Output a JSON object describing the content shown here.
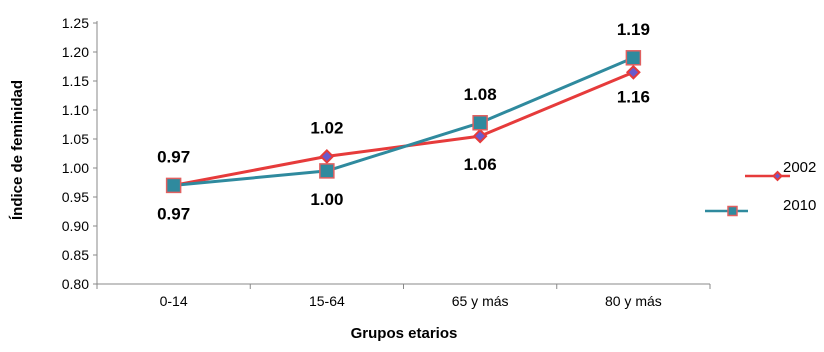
{
  "chart_data": {
    "type": "line",
    "title": "",
    "xlabel": "Grupos etarios",
    "ylabel": "Índice de feminidad",
    "categories": [
      "0-14",
      "15-64",
      "65 y más",
      "80 y más"
    ],
    "ylim": [
      0.8,
      1.25
    ],
    "yticks": [
      "0.80",
      "0.85",
      "0.90",
      "0.95",
      "1.00",
      "1.05",
      "1.10",
      "1.15",
      "1.20",
      "1.25"
    ],
    "grid": false,
    "legend_position": "right",
    "series": [
      {
        "name": "2002",
        "values": [
          0.97,
          1.02,
          1.055,
          1.165
        ],
        "labels": [
          "0.97",
          "1.02",
          "1.06",
          "1.16"
        ],
        "line_color": "#e63b3b",
        "marker": "diamond",
        "marker_fill": "#6a5acd",
        "marker_stroke": "#e63b3b"
      },
      {
        "name": "2010",
        "values": [
          0.97,
          0.995,
          1.078,
          1.19
        ],
        "labels": [
          "0.97",
          "1.00",
          "1.08",
          "1.19"
        ],
        "line_color": "#2f8a9e",
        "marker": "square",
        "marker_fill": "#2f8a9e",
        "marker_stroke": "#e06060"
      }
    ]
  }
}
